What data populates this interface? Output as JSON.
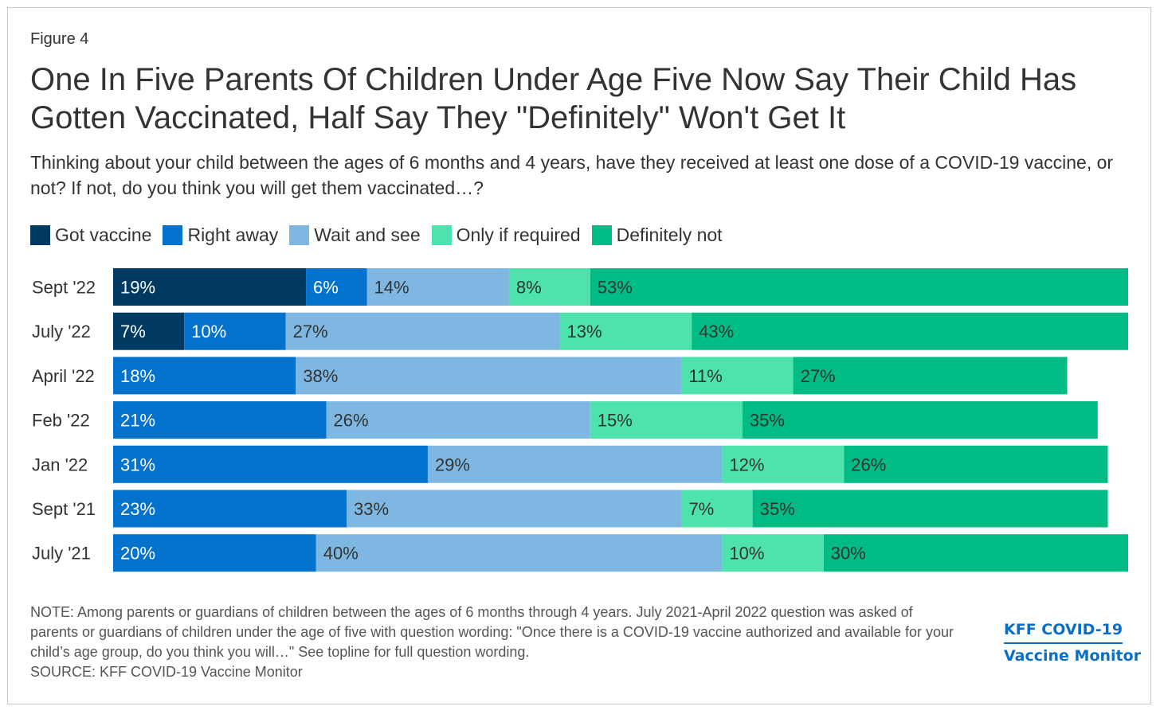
{
  "figure_label": "Figure 4",
  "title": "One In Five Parents Of Children Under Age Five Now Say Their Child Has Gotten Vaccinated, Half Say They \"Definitely\" Won't Get It",
  "subtitle": "Thinking about your child between the ages of 6 months and 4 years, have they received at least one dose of a COVID-19 vaccine, or not? If not, do you think you will get them vaccinated…?",
  "note": "NOTE: Among parents or guardians of children between the ages of 6 months through 4 years. July 2021-April 2022 question was asked of parents or guardians of children under the age of five with question wording: \"Once there is a COVID-19 vaccine authorized and available for your child’s age group, do you think you will…\" See topline for full question wording.",
  "source": "SOURCE: KFF COVID-19 Vaccine Monitor",
  "brand": {
    "line1": "KFF COVID-19",
    "line2": "Vaccine Monitor"
  },
  "chart_data": {
    "type": "bar",
    "orientation": "horizontal",
    "stacked": true,
    "categories": [
      "Sept '22",
      "July '22",
      "April '22",
      "Feb '22",
      "Jan '22",
      "Sept '21",
      "July '21"
    ],
    "series": [
      {
        "name": "Got vaccine",
        "color": "#003a63",
        "values": [
          19,
          7,
          null,
          null,
          null,
          null,
          null
        ]
      },
      {
        "name": "Right away",
        "color": "#0372cc",
        "values": [
          6,
          10,
          18,
          21,
          31,
          23,
          20
        ]
      },
      {
        "name": "Wait and see",
        "color": "#7eb8e2",
        "values": [
          14,
          27,
          38,
          26,
          29,
          33,
          40
        ]
      },
      {
        "name": "Only if required",
        "color": "#4ee2ac",
        "values": [
          8,
          13,
          11,
          15,
          12,
          7,
          10
        ]
      },
      {
        "name": "Definitely not",
        "color": "#00bb84",
        "values": [
          53,
          43,
          27,
          35,
          26,
          35,
          30
        ]
      }
    ],
    "label_colors": [
      "#ffffff",
      "#ffffff",
      "#333333",
      "#333333",
      "#333333"
    ],
    "xlim": [
      0,
      100
    ],
    "legend_position": "top-left",
    "grid": false
  }
}
